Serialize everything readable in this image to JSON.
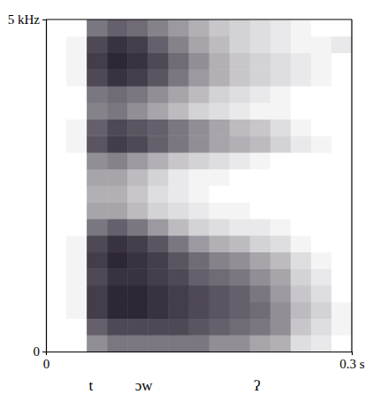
{
  "chart_data": {
    "type": "heatmap",
    "color": "#231c2b",
    "zlim": [
      0,
      1
    ],
    "xlim": [
      0,
      0.3
    ],
    "xticks": [
      0,
      {
        "value": 0.3,
        "label": "0.3 s"
      }
    ],
    "ylim": [
      0,
      5
    ],
    "yticks": [
      0,
      {
        "value": 5,
        "label": "5 kHz"
      }
    ],
    "x_bins": [
      0,
      0.02,
      0.04,
      0.06,
      0.08,
      0.1,
      0.12,
      0.14,
      0.16,
      0.18,
      0.2,
      0.22,
      0.24,
      0.26,
      0.28,
      0.3
    ],
    "y_bins": [
      0,
      0.25,
      0.5,
      0.75,
      1,
      1.25,
      1.5,
      1.75,
      2,
      2.25,
      2.5,
      2.75,
      3,
      3.25,
      3.5,
      3.75,
      4,
      4.25,
      4.5,
      4.75,
      5
    ],
    "values": [
      [
        0,
        0,
        0.5,
        0.6,
        0.6,
        0.6,
        0.6,
        0.6,
        0.5,
        0.5,
        0.4,
        0.35,
        0.15,
        0.1,
        0
      ],
      [
        0,
        0,
        0.7,
        0.8,
        0.8,
        0.8,
        0.8,
        0.75,
        0.7,
        0.65,
        0.6,
        0.5,
        0.25,
        0.15,
        0.05
      ],
      [
        0,
        0.05,
        0.85,
        0.95,
        0.95,
        0.9,
        0.85,
        0.8,
        0.75,
        0.7,
        0.65,
        0.5,
        0.3,
        0.2,
        0.05
      ],
      [
        0,
        0.05,
        0.85,
        0.95,
        0.95,
        0.9,
        0.85,
        0.8,
        0.75,
        0.7,
        0.6,
        0.45,
        0.25,
        0.15,
        0
      ],
      [
        0,
        0.05,
        0.8,
        0.9,
        0.9,
        0.85,
        0.8,
        0.7,
        0.65,
        0.6,
        0.5,
        0.4,
        0.2,
        0.1,
        0
      ],
      [
        0,
        0.05,
        0.85,
        0.95,
        0.9,
        0.85,
        0.75,
        0.65,
        0.55,
        0.5,
        0.4,
        0.3,
        0.15,
        0.05,
        0
      ],
      [
        0,
        0.05,
        0.8,
        0.9,
        0.85,
        0.75,
        0.6,
        0.45,
        0.35,
        0.3,
        0.2,
        0.15,
        0.05,
        0,
        0
      ],
      [
        0,
        0,
        0.6,
        0.7,
        0.6,
        0.45,
        0.3,
        0.2,
        0.15,
        0.1,
        0.1,
        0.05,
        0,
        0,
        0
      ],
      [
        0,
        0,
        0.4,
        0.4,
        0.3,
        0.2,
        0.15,
        0.1,
        0.05,
        0.05,
        0,
        0,
        0,
        0,
        0
      ],
      [
        0,
        0,
        0.35,
        0.35,
        0.25,
        0.15,
        0.1,
        0.05,
        0,
        0,
        0,
        0,
        0,
        0,
        0
      ],
      [
        0,
        0,
        0.4,
        0.4,
        0.3,
        0.2,
        0.1,
        0.05,
        0.05,
        0,
        0,
        0,
        0,
        0,
        0
      ],
      [
        0,
        0,
        0.5,
        0.55,
        0.45,
        0.35,
        0.25,
        0.2,
        0.15,
        0.1,
        0.05,
        0,
        0,
        0,
        0
      ],
      [
        0,
        0.05,
        0.75,
        0.85,
        0.8,
        0.7,
        0.6,
        0.5,
        0.4,
        0.35,
        0.3,
        0.2,
        0.1,
        0.05,
        0
      ],
      [
        0,
        0.05,
        0.7,
        0.8,
        0.75,
        0.7,
        0.6,
        0.5,
        0.4,
        0.3,
        0.25,
        0.15,
        0.05,
        0,
        0
      ],
      [
        0,
        0,
        0.55,
        0.6,
        0.5,
        0.4,
        0.3,
        0.2,
        0.15,
        0.1,
        0.05,
        0.05,
        0,
        0,
        0
      ],
      [
        0,
        0,
        0.6,
        0.65,
        0.6,
        0.5,
        0.4,
        0.3,
        0.2,
        0.15,
        0.1,
        0.05,
        0,
        0,
        0
      ],
      [
        0,
        0.05,
        0.8,
        0.9,
        0.85,
        0.75,
        0.6,
        0.45,
        0.35,
        0.25,
        0.2,
        0.15,
        0.1,
        0.05,
        0
      ],
      [
        0,
        0.05,
        0.85,
        0.95,
        0.9,
        0.8,
        0.65,
        0.5,
        0.35,
        0.25,
        0.2,
        0.15,
        0.1,
        0.05,
        0
      ],
      [
        0,
        0.05,
        0.8,
        0.9,
        0.85,
        0.7,
        0.55,
        0.4,
        0.3,
        0.2,
        0.15,
        0.1,
        0.05,
        0.05,
        0.1
      ],
      [
        0,
        0,
        0.6,
        0.7,
        0.65,
        0.55,
        0.45,
        0.35,
        0.25,
        0.2,
        0.15,
        0.1,
        0.05,
        0,
        0
      ]
    ],
    "annotations": [
      {
        "text": "t",
        "x": 0.044
      },
      {
        "text": "ɔw",
        "x": 0.096
      },
      {
        "text": "ʔ",
        "x": 0.207
      }
    ]
  }
}
